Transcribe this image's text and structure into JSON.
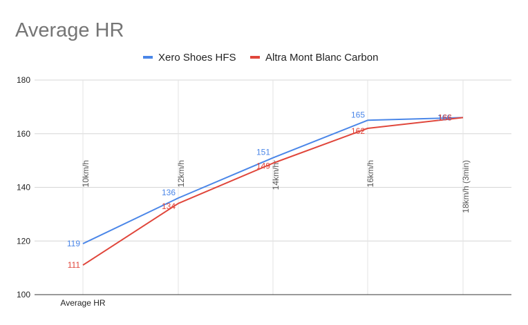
{
  "chart_data": {
    "type": "line",
    "title": "Average HR",
    "xlabel": "Average HR",
    "ylabel": "",
    "ylim": [
      100,
      180
    ],
    "yticks": [
      100,
      120,
      140,
      160,
      180
    ],
    "grid": true,
    "legend_position": "top-center",
    "categories": [
      "10km/h",
      "12km/h",
      "14km/hr",
      "16km/h",
      "18km/h (3min)"
    ],
    "series": [
      {
        "name": "Xero Shoes HFS",
        "color": "#4a86e8",
        "values": [
          119,
          136,
          151,
          165,
          166
        ]
      },
      {
        "name": "Altra Mont Blanc Carbon",
        "color": "#e0463b",
        "values": [
          111,
          134,
          149,
          162,
          166
        ]
      }
    ]
  }
}
